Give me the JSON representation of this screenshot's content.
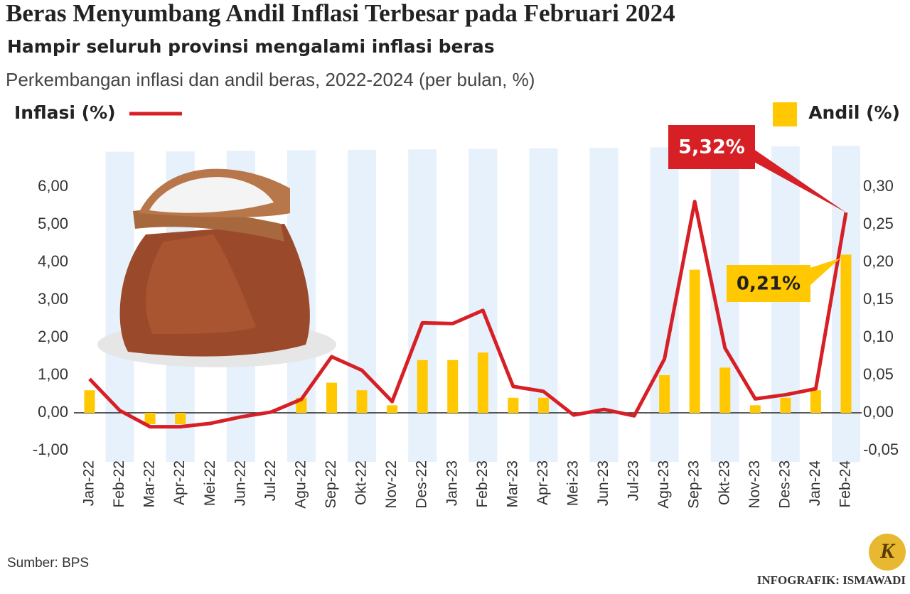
{
  "title": "Beras Menyumbang Andil Inflasi Terbesar pada Februari 2024",
  "subtitle": "Hampir seluruh provinsi mengalami inflasi beras",
  "source": "Sumber: BPS",
  "credit": "INFOGRAFIK: ISMAWADI",
  "logo": "K",
  "chart_data": {
    "type": "combo",
    "subtitle": "Perkembangan inflasi dan andil beras, 2022-2024 (per bulan, %)",
    "categories": [
      "Jan-22",
      "Feb-22",
      "Mar-22",
      "Apr-22",
      "Mei-22",
      "Jun-22",
      "Jul-22",
      "Agu-22",
      "Sep-22",
      "Okt-22",
      "Nov-22",
      "Des-22",
      "Jan-23",
      "Feb-23",
      "Mar-23",
      "Apr-23",
      "Mei-23",
      "Jun-23",
      "Jul-23",
      "Agu-23",
      "Sep-23",
      "Okt-23",
      "Nov-23",
      "Des-23",
      "Jan-24",
      "Feb-24"
    ],
    "series": [
      {
        "name": "Inflasi (%)",
        "kind": "line",
        "axis": "y",
        "color": "#d71f26",
        "values": [
          0.9,
          0.06,
          -0.37,
          -0.37,
          -0.28,
          -0.11,
          0.02,
          0.36,
          1.49,
          1.13,
          0.3,
          2.39,
          2.37,
          2.72,
          0.7,
          0.57,
          -0.06,
          0.09,
          -0.08,
          1.43,
          5.61,
          1.72,
          0.37,
          0.48,
          0.64,
          5.32
        ],
        "value_labels": [
          null,
          null,
          null,
          null,
          null,
          null,
          null,
          null,
          null,
          null,
          null,
          null,
          null,
          null,
          null,
          null,
          null,
          null,
          null,
          null,
          null,
          null,
          null,
          null,
          null,
          "5,32%"
        ]
      },
      {
        "name": "Andil (%)",
        "kind": "bar",
        "axis": "y2",
        "color": "#ffc800",
        "values": [
          0.03,
          0,
          -0.015,
          -0.015,
          0,
          0,
          0,
          0.02,
          0.04,
          0.03,
          0.01,
          0.07,
          0.07,
          0.08,
          0.02,
          0.02,
          0,
          0,
          0,
          0.05,
          0.19,
          0.06,
          0.01,
          0.02,
          0.03,
          0.21
        ],
        "value_labels": [
          null,
          null,
          null,
          null,
          null,
          null,
          null,
          null,
          null,
          null,
          null,
          null,
          null,
          null,
          null,
          null,
          null,
          null,
          null,
          null,
          null,
          null,
          null,
          null,
          null,
          "0,21%"
        ]
      }
    ],
    "ylim": [
      -1,
      6
    ],
    "yticks": [
      {
        "value": -1,
        "label": "-1,00"
      },
      {
        "value": 0,
        "label": "0,00"
      },
      {
        "value": 1,
        "label": "1,00"
      },
      {
        "value": 2,
        "label": "2,00"
      },
      {
        "value": 3,
        "label": "3,00"
      },
      {
        "value": 4,
        "label": "4,00"
      },
      {
        "value": 5,
        "label": "5,00"
      },
      {
        "value": 6,
        "label": "6,00"
      }
    ],
    "y2lim": [
      -0.05,
      0.3
    ],
    "y2ticks": [
      {
        "value": -0.05,
        "label": "-0,05"
      },
      {
        "value": 0,
        "label": "0,00"
      },
      {
        "value": 0.05,
        "label": "0,05"
      },
      {
        "value": 0.1,
        "label": "0,10"
      },
      {
        "value": 0.15,
        "label": "0,15"
      },
      {
        "value": 0.2,
        "label": "0,20"
      },
      {
        "value": 0.25,
        "label": "0,25"
      },
      {
        "value": 0.3,
        "label": "0,30"
      }
    ]
  }
}
